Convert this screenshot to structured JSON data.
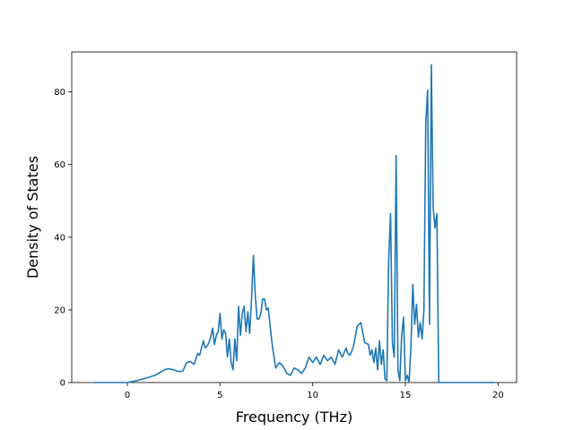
{
  "chart_data": {
    "type": "line",
    "xlabel": "Frequency (THz)",
    "ylabel": "Density of States",
    "xlim": [
      -3.0,
      21.0
    ],
    "ylim": [
      0,
      91
    ],
    "grid": false,
    "xticks": [
      0,
      5,
      10,
      15,
      20
    ],
    "yticks": [
      0,
      20,
      40,
      60,
      80
    ],
    "series_color": "#1f77b4",
    "x": [
      -1.8,
      -1.0,
      0.0,
      0.5,
      1.0,
      1.5,
      2.0,
      2.2,
      2.5,
      2.8,
      3.0,
      3.2,
      3.4,
      3.6,
      3.8,
      3.9,
      4.1,
      4.2,
      4.3,
      4.4,
      4.5,
      4.6,
      4.7,
      4.8,
      4.9,
      5.0,
      5.1,
      5.2,
      5.3,
      5.4,
      5.5,
      5.6,
      5.7,
      5.8,
      5.9,
      6.0,
      6.1,
      6.2,
      6.3,
      6.4,
      6.5,
      6.6,
      6.7,
      6.8,
      6.9,
      7.0,
      7.1,
      7.2,
      7.3,
      7.4,
      7.5,
      7.6,
      7.8,
      8.0,
      8.2,
      8.4,
      8.6,
      8.8,
      9.0,
      9.2,
      9.4,
      9.6,
      9.8,
      10.0,
      10.2,
      10.4,
      10.6,
      10.8,
      11.0,
      11.2,
      11.4,
      11.6,
      11.8,
      11.9,
      12.0,
      12.1,
      12.2,
      12.4,
      12.6,
      12.8,
      13.0,
      13.1,
      13.2,
      13.3,
      13.4,
      13.5,
      13.6,
      13.7,
      13.8,
      13.9,
      14.0,
      14.1,
      14.2,
      14.3,
      14.4,
      14.5,
      14.6,
      14.7,
      14.8,
      14.9,
      15.0,
      15.1,
      15.2,
      15.3,
      15.4,
      15.5,
      15.6,
      15.7,
      15.8,
      15.9,
      16.0,
      16.1,
      16.2,
      16.3,
      16.4,
      16.5,
      16.6,
      16.7,
      16.8,
      16.9,
      17.0,
      17.05,
      17.2,
      18.0,
      19.0,
      19.8
    ],
    "y": [
      0,
      0,
      0,
      0.5,
      1.2,
      2.0,
      3.5,
      3.8,
      3.5,
      3.0,
      3.2,
      5.5,
      5.8,
      5.0,
      8.0,
      7.5,
      11.5,
      9.5,
      10.0,
      11.0,
      12.5,
      15.0,
      10.5,
      13.0,
      14.0,
      19.0,
      12.0,
      14.5,
      13.5,
      7.0,
      12.0,
      5.5,
      3.5,
      12.0,
      6.0,
      21.0,
      13.0,
      19.0,
      21.0,
      14.0,
      19.5,
      13.5,
      23.0,
      35.0,
      24.0,
      17.5,
      17.5,
      19.0,
      23.0,
      23.0,
      20.0,
      20.5,
      11.0,
      4.0,
      5.5,
      4.5,
      2.5,
      2.0,
      4.0,
      3.5,
      2.5,
      4.0,
      7.0,
      5.5,
      7.0,
      5.0,
      7.5,
      6.0,
      7.0,
      5.0,
      9.0,
      7.0,
      9.5,
      8.0,
      7.5,
      8.5,
      10.0,
      15.5,
      16.5,
      11.0,
      10.5,
      7.5,
      9.0,
      5.5,
      9.5,
      3.5,
      11.5,
      5.0,
      9.0,
      1.0,
      0.5,
      34.0,
      46.5,
      11.0,
      7.0,
      62.5,
      3.5,
      0.5,
      13.0,
      18.0,
      0.5,
      2.0,
      0.0,
      10.0,
      27.0,
      16.0,
      21.5,
      12.5,
      16.5,
      12.0,
      20.0,
      71.5,
      80.5,
      16.0,
      87.5,
      48.0,
      42.5,
      46.5,
      0.0,
      0.0,
      0.0,
      0.0,
      0.0,
      0.0,
      0.0,
      0.0
    ]
  }
}
